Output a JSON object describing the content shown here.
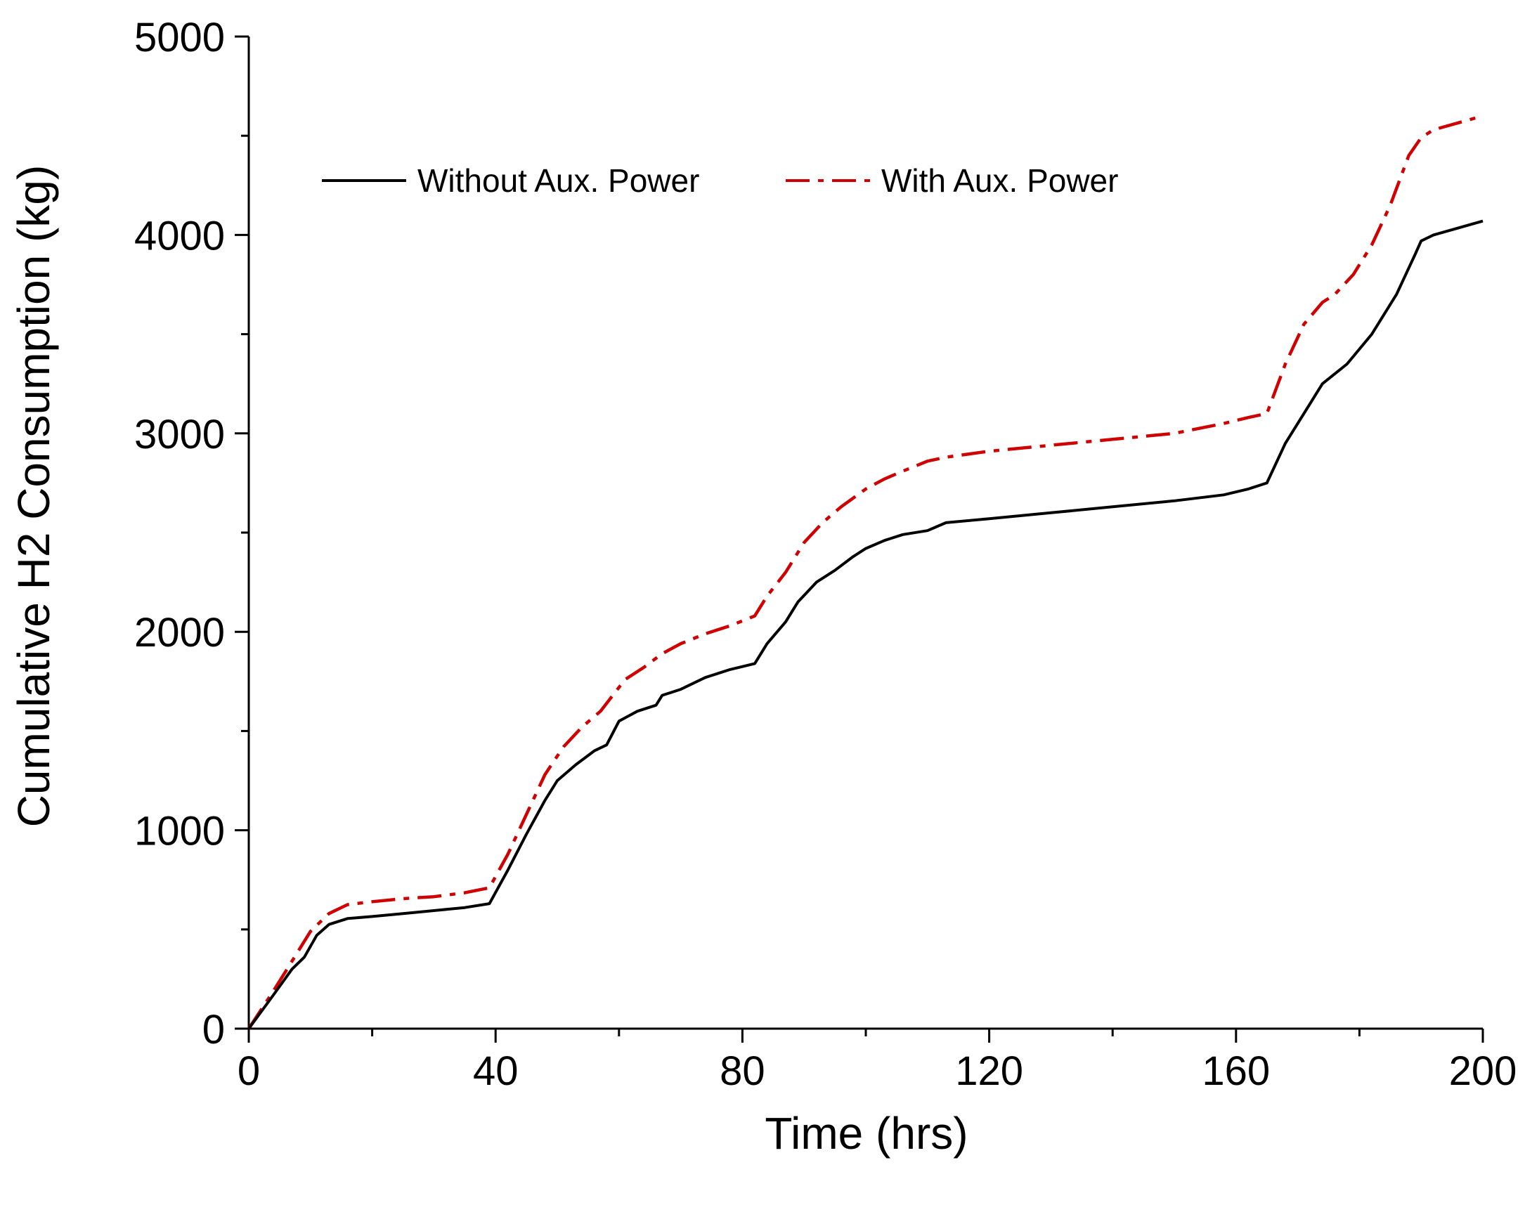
{
  "chart_data": {
    "type": "line",
    "title": "",
    "xlabel": "Time (hrs)",
    "ylabel": "Cumulative H2 Consumption (kg)",
    "xlim": [
      0,
      200
    ],
    "ylim": [
      0,
      5000
    ],
    "x_ticks": [
      0,
      40,
      80,
      120,
      160,
      200
    ],
    "x_tick_labels": [
      "0",
      "40",
      "80",
      "120",
      "160",
      "200"
    ],
    "x_minor_ticks": [
      20,
      60,
      100,
      140,
      180
    ],
    "y_ticks": [
      0,
      1000,
      2000,
      3000,
      4000,
      5000
    ],
    "y_tick_labels": [
      "0",
      "1000",
      "2000",
      "3000",
      "4000",
      "5000"
    ],
    "y_minor_ticks": [
      500,
      1500,
      2500,
      3500,
      4500
    ],
    "grid": false,
    "legend_position": "top-left",
    "series": [
      {
        "name": "Without Aux. Power",
        "color": "#000000",
        "style": "solid",
        "points": [
          [
            0,
            0
          ],
          [
            4,
            170
          ],
          [
            7,
            300
          ],
          [
            9,
            360
          ],
          [
            11,
            470
          ],
          [
            13,
            525
          ],
          [
            16,
            555
          ],
          [
            20,
            565
          ],
          [
            25,
            580
          ],
          [
            30,
            595
          ],
          [
            35,
            610
          ],
          [
            38,
            625
          ],
          [
            39,
            630
          ],
          [
            42,
            800
          ],
          [
            45,
            980
          ],
          [
            48,
            1150
          ],
          [
            50,
            1250
          ],
          [
            53,
            1330
          ],
          [
            56,
            1400
          ],
          [
            58,
            1430
          ],
          [
            60,
            1550
          ],
          [
            63,
            1600
          ],
          [
            66,
            1630
          ],
          [
            67,
            1680
          ],
          [
            70,
            1710
          ],
          [
            74,
            1770
          ],
          [
            78,
            1810
          ],
          [
            82,
            1840
          ],
          [
            84,
            1940
          ],
          [
            87,
            2050
          ],
          [
            89,
            2150
          ],
          [
            92,
            2250
          ],
          [
            95,
            2310
          ],
          [
            98,
            2380
          ],
          [
            100,
            2420
          ],
          [
            103,
            2460
          ],
          [
            106,
            2490
          ],
          [
            110,
            2510
          ],
          [
            113,
            2550
          ],
          [
            120,
            2570
          ],
          [
            130,
            2600
          ],
          [
            140,
            2630
          ],
          [
            150,
            2660
          ],
          [
            158,
            2690
          ],
          [
            162,
            2720
          ],
          [
            165,
            2750
          ],
          [
            168,
            2950
          ],
          [
            172,
            3150
          ],
          [
            174,
            3250
          ],
          [
            176,
            3300
          ],
          [
            178,
            3350
          ],
          [
            182,
            3500
          ],
          [
            186,
            3700
          ],
          [
            189,
            3900
          ],
          [
            190,
            3970
          ],
          [
            192,
            4000
          ],
          [
            200,
            4070
          ]
        ]
      },
      {
        "name": "With Aux. Power",
        "color": "#d00000",
        "style": "dash-dot",
        "points": [
          [
            0,
            0
          ],
          [
            4,
            190
          ],
          [
            7,
            340
          ],
          [
            10,
            490
          ],
          [
            13,
            580
          ],
          [
            16,
            625
          ],
          [
            20,
            640
          ],
          [
            25,
            655
          ],
          [
            30,
            665
          ],
          [
            35,
            685
          ],
          [
            39,
            710
          ],
          [
            42,
            880
          ],
          [
            45,
            1080
          ],
          [
            48,
            1280
          ],
          [
            51,
            1420
          ],
          [
            54,
            1520
          ],
          [
            57,
            1600
          ],
          [
            59,
            1680
          ],
          [
            61,
            1760
          ],
          [
            64,
            1820
          ],
          [
            67,
            1890
          ],
          [
            70,
            1940
          ],
          [
            74,
            1990
          ],
          [
            78,
            2030
          ],
          [
            82,
            2080
          ],
          [
            84,
            2180
          ],
          [
            87,
            2300
          ],
          [
            90,
            2450
          ],
          [
            93,
            2550
          ],
          [
            96,
            2630
          ],
          [
            100,
            2720
          ],
          [
            103,
            2770
          ],
          [
            106,
            2810
          ],
          [
            110,
            2860
          ],
          [
            113,
            2880
          ],
          [
            120,
            2910
          ],
          [
            130,
            2940
          ],
          [
            140,
            2970
          ],
          [
            150,
            3000
          ],
          [
            158,
            3050
          ],
          [
            162,
            3080
          ],
          [
            165,
            3100
          ],
          [
            168,
            3350
          ],
          [
            171,
            3550
          ],
          [
            174,
            3660
          ],
          [
            176,
            3700
          ],
          [
            179,
            3800
          ],
          [
            182,
            3950
          ],
          [
            185,
            4150
          ],
          [
            188,
            4400
          ],
          [
            190,
            4490
          ],
          [
            192,
            4530
          ],
          [
            200,
            4600
          ]
        ]
      }
    ]
  }
}
